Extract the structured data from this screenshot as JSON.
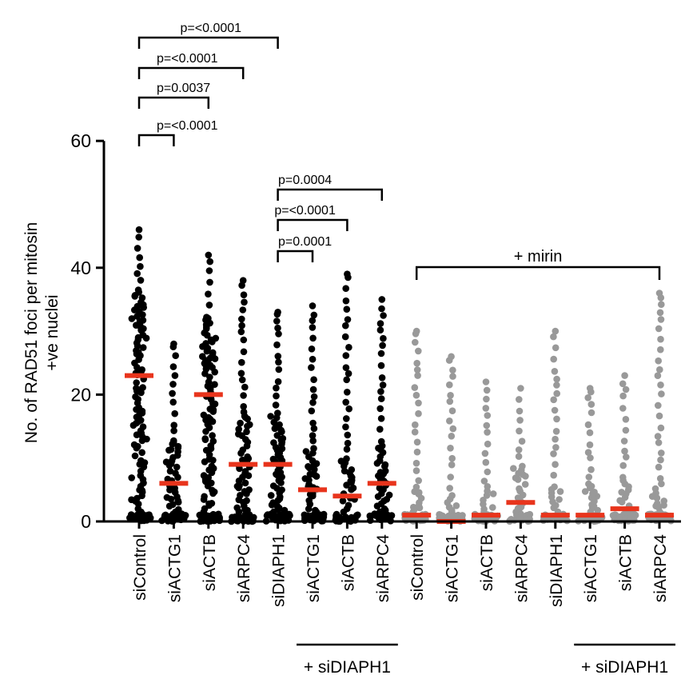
{
  "chart_data": {
    "type": "scatter",
    "subtype": "dot-strip-plot",
    "ylabel_lines": [
      "No. of RAD51 foci per mitosin",
      "+ve nuclei"
    ],
    "ylim": [
      0,
      60
    ],
    "yticks": [
      0,
      20,
      40,
      60
    ],
    "categories": [
      "siControl",
      "siACTG1",
      "siACTB",
      "siARPC4",
      "siDIAPH1",
      "siACTG1",
      "siACTB",
      "siARPC4",
      "siControl",
      "siACTG1",
      "siACTB",
      "siARPC4",
      "siDIAPH1",
      "siACTG1",
      "siACTB",
      "siARPC4"
    ],
    "groups": [
      {
        "label": "siControl",
        "mirin": false,
        "dot_color": "#000000",
        "median": 23,
        "max": 46
      },
      {
        "label": "siACTG1",
        "mirin": false,
        "dot_color": "#000000",
        "median": 6,
        "max": 28
      },
      {
        "label": "siACTB",
        "mirin": false,
        "dot_color": "#000000",
        "median": 20,
        "max": 42
      },
      {
        "label": "siARPC4",
        "mirin": false,
        "dot_color": "#000000",
        "median": 9,
        "max": 38
      },
      {
        "label": "siDIAPH1",
        "mirin": false,
        "dot_color": "#000000",
        "median": 9,
        "max": 33
      },
      {
        "label": "siACTG1",
        "mirin": false,
        "dot_color": "#000000",
        "median": 5,
        "max": 34
      },
      {
        "label": "siACTB",
        "mirin": false,
        "dot_color": "#000000",
        "median": 4,
        "max": 39
      },
      {
        "label": "siARPC4",
        "mirin": false,
        "dot_color": "#000000",
        "median": 6,
        "max": 35
      },
      {
        "label": "siControl",
        "mirin": true,
        "dot_color": "#999999",
        "median": 1,
        "max": 30
      },
      {
        "label": "siACTG1",
        "mirin": true,
        "dot_color": "#999999",
        "median": 0,
        "max": 26
      },
      {
        "label": "siACTB",
        "mirin": true,
        "dot_color": "#999999",
        "median": 1,
        "max": 22
      },
      {
        "label": "siARPC4",
        "mirin": true,
        "dot_color": "#999999",
        "median": 3,
        "max": 21
      },
      {
        "label": "siDIAPH1",
        "mirin": true,
        "dot_color": "#999999",
        "median": 1,
        "max": 30
      },
      {
        "label": "siACTG1",
        "mirin": true,
        "dot_color": "#999999",
        "median": 1,
        "max": 21
      },
      {
        "label": "siACTB",
        "mirin": true,
        "dot_color": "#999999",
        "median": 2,
        "max": 23
      },
      {
        "label": "siARPC4",
        "mirin": true,
        "dot_color": "#999999",
        "median": 1,
        "max": 36
      }
    ],
    "comparisons": [
      {
        "from": 0,
        "to": 1,
        "label": "p=<0.0001"
      },
      {
        "from": 0,
        "to": 2,
        "label": "p=0.0037"
      },
      {
        "from": 0,
        "to": 3,
        "label": "p=<0.0001"
      },
      {
        "from": 0,
        "to": 4,
        "label": "p=<0.0001"
      },
      {
        "from": 4,
        "to": 5,
        "label": "p=0.0001"
      },
      {
        "from": 4,
        "to": 6,
        "label": "p=<0.0001"
      },
      {
        "from": 4,
        "to": 7,
        "label": "p=0.0004"
      }
    ],
    "mirin_bracket": {
      "from": 8,
      "to": 15,
      "label": "+ mirin"
    },
    "group_lines": [
      {
        "from": 5,
        "to": 7,
        "label": "+ siDIAPH1"
      },
      {
        "from": 13,
        "to": 15,
        "label": "+ siDIAPH1"
      }
    ],
    "colors": {
      "median": "#e8341c",
      "black_dots": "#000000",
      "gray_dots": "#999999"
    }
  }
}
